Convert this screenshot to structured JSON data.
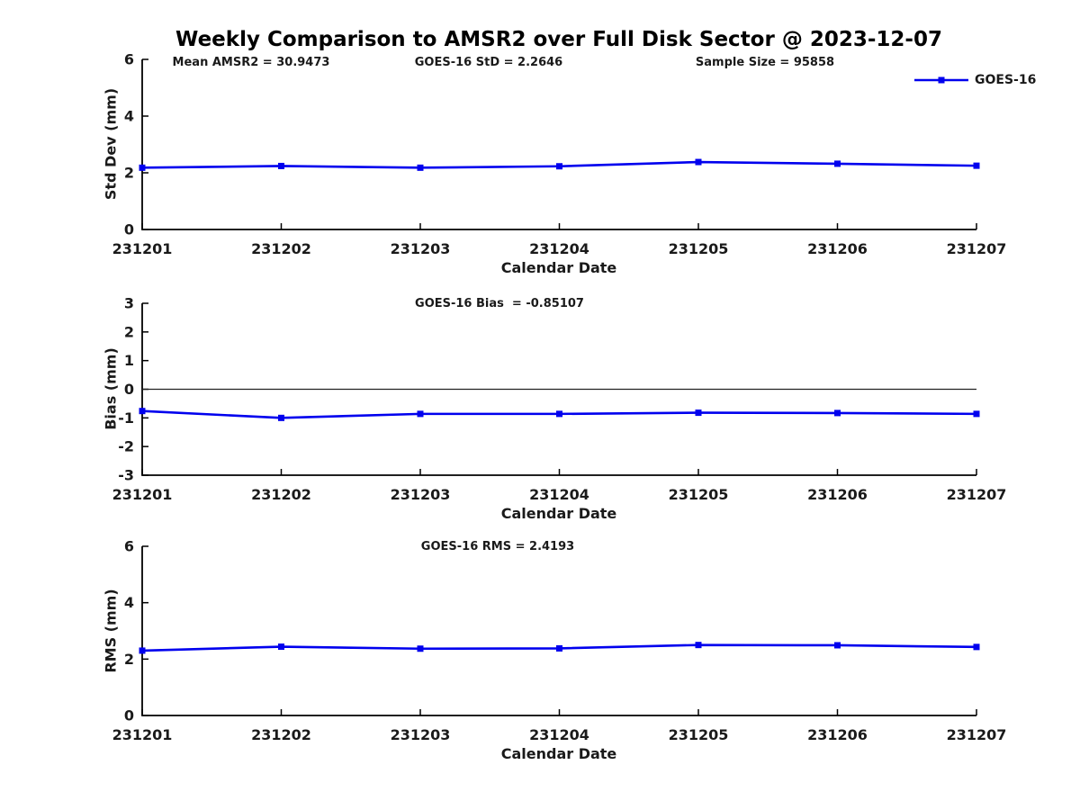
{
  "title": "Weekly Comparison to AMSR2 over Full Disk Sector @ 2023-12-07",
  "legend": {
    "label": "GOES-16"
  },
  "colors": {
    "series": "#0000ee",
    "axis": "#000000",
    "zero_line": "#222222"
  },
  "chart_data": [
    {
      "type": "line",
      "name": "std-dev",
      "annotations": [
        "Mean AMSR2 = 30.9473",
        "GOES-16 StD = 2.2646",
        "Sample Size = 95858"
      ],
      "categories": [
        "231201",
        "231202",
        "231203",
        "231204",
        "231205",
        "231206",
        "231207"
      ],
      "series": [
        {
          "name": "GOES-16",
          "values": [
            2.18,
            2.24,
            2.18,
            2.23,
            2.38,
            2.32,
            2.25
          ]
        }
      ],
      "xlabel": "Calendar Date",
      "ylabel": "Std Dev (mm)",
      "ylim": [
        0,
        6
      ],
      "yticks": [
        0,
        2,
        4,
        6
      ],
      "marker": "square",
      "zero_line": false,
      "legend_position": "top-right",
      "grid": false
    },
    {
      "type": "line",
      "name": "bias",
      "annotations": [
        "GOES-16 Bias  = -0.85107"
      ],
      "categories": [
        "231201",
        "231202",
        "231203",
        "231204",
        "231205",
        "231206",
        "231207"
      ],
      "series": [
        {
          "name": "GOES-16",
          "values": [
            -0.76,
            -1.0,
            -0.86,
            -0.86,
            -0.82,
            -0.83,
            -0.86
          ]
        }
      ],
      "xlabel": "Calendar Date",
      "ylabel": "Bias (mm)",
      "ylim": [
        -3,
        3
      ],
      "yticks": [
        -3,
        -2,
        -1,
        0,
        1,
        2,
        3
      ],
      "marker": "square",
      "zero_line": true,
      "grid": false
    },
    {
      "type": "line",
      "name": "rms",
      "annotations": [
        "GOES-16 RMS = 2.4193"
      ],
      "categories": [
        "231201",
        "231202",
        "231203",
        "231204",
        "231205",
        "231206",
        "231207"
      ],
      "series": [
        {
          "name": "GOES-16",
          "values": [
            2.3,
            2.44,
            2.37,
            2.38,
            2.5,
            2.49,
            2.43
          ]
        }
      ],
      "xlabel": "Calendar Date",
      "ylabel": "RMS (mm)",
      "ylim": [
        0,
        6
      ],
      "yticks": [
        0,
        2,
        4,
        6
      ],
      "marker": "square",
      "zero_line": false,
      "grid": false
    }
  ]
}
